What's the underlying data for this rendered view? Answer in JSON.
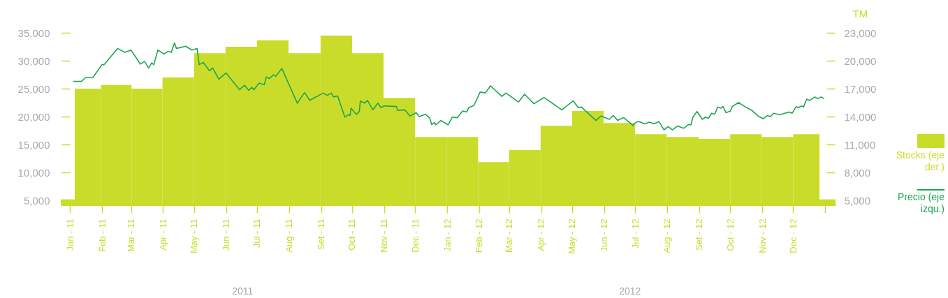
{
  "chart_data": {
    "type": "bar",
    "y2label": "TM",
    "xlim": [
      "2010-12-23",
      "2013-01-11"
    ],
    "xticks": [
      {
        "value": "2011-01-01",
        "label": "Jan - 11"
      },
      {
        "value": "2011-02-01",
        "label": "Feb - 11"
      },
      {
        "value": "2011-03-01",
        "label": "Mar - 11"
      },
      {
        "value": "2011-04-01",
        "label": "Apr - 11"
      },
      {
        "value": "2011-05-01",
        "label": "May - 11"
      },
      {
        "value": "2011-06-01",
        "label": "Jun - 11"
      },
      {
        "value": "2011-07-01",
        "label": "Jul - 11"
      },
      {
        "value": "2011-08-01",
        "label": "Aug - 11"
      },
      {
        "value": "2011-09-01",
        "label": "Set - 11"
      },
      {
        "value": "2011-10-01",
        "label": "Oct - 11"
      },
      {
        "value": "2011-11-01",
        "label": "Nov - 11"
      },
      {
        "value": "2011-12-01",
        "label": "Dec - 11"
      },
      {
        "value": "2012-01-01",
        "label": "Jan - 12"
      },
      {
        "value": "2012-02-01",
        "label": "Feb - 12"
      },
      {
        "value": "2012-03-01",
        "label": "Mar - 12"
      },
      {
        "value": "2012-04-01",
        "label": "Apr - 12"
      },
      {
        "value": "2012-05-01",
        "label": "May - 12"
      },
      {
        "value": "2012-06-01",
        "label": "Jun - 12"
      },
      {
        "value": "2012-07-01",
        "label": "Jul - 12"
      },
      {
        "value": "2012-08-01",
        "label": "Aug - 12"
      },
      {
        "value": "2012-09-01",
        "label": "Set - 12"
      },
      {
        "value": "2012-10-01",
        "label": "Oct - 12"
      },
      {
        "value": "2012-11-01",
        "label": "Nov - 12"
      },
      {
        "value": "2012-12-01",
        "label": "Dec - 12"
      },
      {
        "value": "2013-01-01",
        "label": null
      }
    ],
    "ylim": [
      4250,
      35000
    ],
    "yticks": [
      {
        "value": 5000,
        "label": "5,000"
      },
      {
        "value": 10000,
        "label": "10,000"
      },
      {
        "value": 15000,
        "label": "15,000"
      },
      {
        "value": 20000,
        "label": "20,000"
      },
      {
        "value": 25000,
        "label": "25,000"
      },
      {
        "value": 30000,
        "label": "30,000"
      },
      {
        "value": 35000,
        "label": "35,000"
      }
    ],
    "y2lim": [
      4550,
      23000
    ],
    "y2ticks": [
      {
        "value": 5000,
        "label": "5,000"
      },
      {
        "value": 8000,
        "label": "8,000"
      },
      {
        "value": 11000,
        "label": "11,000"
      },
      {
        "value": 14000,
        "label": "14,000"
      },
      {
        "value": 17000,
        "label": "17,000"
      },
      {
        "value": 20000,
        "label": "20,000"
      },
      {
        "value": 23000,
        "label": "23,000"
      }
    ],
    "annotations": [
      "2011",
      "2012"
    ],
    "legend": "right",
    "grid": false,
    "series": [
      {
        "name": "Stocks (eje der.)",
        "axis": "y2",
        "color": "#cadc2a",
        "x": [
          "2010-12-26",
          "2011-01-16",
          "2011-02-15",
          "2011-03-16",
          "2011-04-16",
          "2011-05-16",
          "2011-06-16",
          "2011-07-16",
          "2011-08-16",
          "2011-09-16",
          "2011-10-16",
          "2011-11-16",
          "2011-12-16",
          "2012-01-16",
          "2012-02-15",
          "2012-03-16",
          "2012-04-16",
          "2012-05-16",
          "2012-06-16",
          "2012-07-16",
          "2012-08-16",
          "2012-09-16",
          "2012-10-16",
          "2012-11-16",
          "2012-12-16",
          "2013-01-06"
        ],
        "values": [
          5100,
          17000,
          17400,
          17000,
          18200,
          20800,
          21500,
          22200,
          20800,
          22700,
          20800,
          16000,
          11800,
          11800,
          9100,
          10400,
          13000,
          14600,
          13300,
          12100,
          11800,
          11600,
          12100,
          11800,
          12100,
          5100
        ]
      },
      {
        "name": "Precio (eje izqu.)",
        "type": "line",
        "color": "#1ea550",
        "x": [
          "2011-01-04",
          "2011-01-12",
          "2011-01-16",
          "2011-01-23",
          "2011-02-01",
          "2011-02-03",
          "2011-02-16",
          "2011-02-23",
          "2011-03-01",
          "2011-03-10",
          "2011-03-14",
          "2011-03-18",
          "2011-03-21",
          "2011-03-23",
          "2011-03-27",
          "2011-04-02",
          "2011-04-06",
          "2011-04-09",
          "2011-04-12",
          "2011-04-14",
          "2011-04-23",
          "2011-04-29",
          "2011-05-04",
          "2011-05-06",
          "2011-05-10",
          "2011-05-16",
          "2011-05-19",
          "2011-05-25",
          "2011-06-01",
          "2011-06-14",
          "2011-06-19",
          "2011-06-23",
          "2011-06-26",
          "2011-06-28",
          "2011-07-03",
          "2011-07-08",
          "2011-07-10",
          "2011-07-13",
          "2011-07-17",
          "2011-07-19",
          "2011-07-25",
          "2011-08-09",
          "2011-08-16",
          "2011-08-21",
          "2011-09-03",
          "2011-09-07",
          "2011-09-11",
          "2011-09-13",
          "2011-09-17",
          "2011-09-24",
          "2011-09-27",
          "2011-09-29",
          "2011-09-30",
          "2011-10-05",
          "2011-10-08",
          "2011-10-09",
          "2011-10-13",
          "2011-10-16",
          "2011-10-21",
          "2011-10-26",
          "2011-10-29",
          "2011-11-01",
          "2011-11-13",
          "2011-11-14",
          "2011-11-21",
          "2011-11-26",
          "2011-12-02",
          "2011-12-05",
          "2011-12-11",
          "2011-12-15",
          "2011-12-17",
          "2011-12-20",
          "2011-12-21",
          "2011-12-26",
          "2012-01-02",
          "2012-01-06",
          "2012-01-11",
          "2012-01-16",
          "2012-01-20",
          "2012-01-22",
          "2012-01-27",
          "2012-02-02",
          "2012-02-07",
          "2012-02-12",
          "2012-02-23",
          "2012-02-27",
          "2012-03-10",
          "2012-03-16",
          "2012-03-25",
          "2012-04-04",
          "2012-04-21",
          "2012-05-02",
          "2012-05-07",
          "2012-05-10",
          "2012-05-24",
          "2012-05-29",
          "2012-06-06",
          "2012-06-10",
          "2012-06-14",
          "2012-06-20",
          "2012-06-29",
          "2012-07-02",
          "2012-07-05",
          "2012-07-10",
          "2012-07-15",
          "2012-07-19",
          "2012-07-24",
          "2012-07-29",
          "2012-08-02",
          "2012-08-06",
          "2012-08-11",
          "2012-08-17",
          "2012-08-22",
          "2012-08-24",
          "2012-08-26",
          "2012-08-30",
          "2012-09-04",
          "2012-09-07",
          "2012-09-10",
          "2012-09-13",
          "2012-09-16",
          "2012-09-19",
          "2012-09-22",
          "2012-09-24",
          "2012-09-27",
          "2012-09-30",
          "2012-10-01",
          "2012-10-03",
          "2012-10-09",
          "2012-10-16",
          "2012-10-22",
          "2012-10-28",
          "2012-11-02",
          "2012-11-06",
          "2012-11-09",
          "2012-11-12",
          "2012-11-18",
          "2012-11-27",
          "2012-11-30",
          "2012-12-04",
          "2012-12-06",
          "2012-12-09",
          "2012-12-11",
          "2012-12-14",
          "2012-12-17",
          "2012-12-22",
          "2012-12-25",
          "2012-12-28",
          "2012-12-31"
        ],
        "values": [
          26300,
          26300,
          27000,
          27000,
          29300,
          29300,
          32200,
          31500,
          31900,
          29400,
          29900,
          28700,
          29600,
          29300,
          31900,
          31200,
          31700,
          31500,
          33200,
          32200,
          32600,
          31900,
          32200,
          29300,
          29700,
          28200,
          28700,
          26700,
          27800,
          24800,
          25600,
          24700,
          25200,
          24800,
          26000,
          25700,
          27100,
          26800,
          27500,
          27200,
          28600,
          22400,
          24300,
          22900,
          24200,
          23800,
          24200,
          23500,
          23700,
          19900,
          20300,
          20200,
          21500,
          20400,
          20900,
          22800,
          22400,
          22900,
          21200,
          22400,
          21600,
          21900,
          21800,
          21100,
          21200,
          20100,
          20700,
          20000,
          20400,
          19800,
          18600,
          18900,
          18500,
          19300,
          18500,
          19900,
          19800,
          21000,
          20800,
          21600,
          22000,
          24400,
          24200,
          25500,
          23600,
          24200,
          22600,
          24000,
          22300,
          23400,
          21200,
          22800,
          21600,
          21700,
          19300,
          20100,
          19500,
          20200,
          19300,
          19800,
          18400,
          19000,
          19100,
          18700,
          19000,
          18700,
          19100,
          17600,
          18200,
          17600,
          18300,
          17900,
          18600,
          18500,
          19900,
          20900,
          19500,
          19900,
          19700,
          20600,
          20400,
          21700,
          21500,
          21800,
          20700,
          20900,
          20900,
          21800,
          22500,
          21700,
          21100,
          20100,
          19600,
          20200,
          20000,
          20600,
          20300,
          20800,
          20600,
          21800,
          21600,
          21900,
          21700,
          23100,
          22900,
          23500,
          23200,
          23500,
          23200
        ]
      }
    ]
  }
}
